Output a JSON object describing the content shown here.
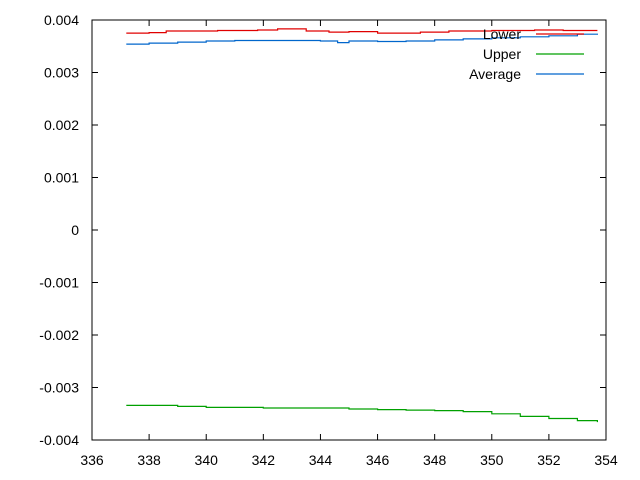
{
  "chart_data": {
    "type": "line",
    "title": "",
    "xlabel": "",
    "ylabel": "",
    "xlim": [
      336,
      354
    ],
    "ylim": [
      -0.004,
      0.004
    ],
    "x_ticks": [
      "336",
      "338",
      "340",
      "342",
      "344",
      "346",
      "348",
      "350",
      "352",
      "354"
    ],
    "y_ticks": [
      "-0.004",
      "-0.003",
      "-0.002",
      "-0.001",
      "0",
      "0.001",
      "0.002",
      "0.003",
      "0.004"
    ],
    "grid": false,
    "legend_position": "top-right",
    "series": [
      {
        "name": "Lower",
        "color": "#e00000",
        "x": [
          337.2,
          338.0,
          338.6,
          339.5,
          340.4,
          341.2,
          341.8,
          342.5,
          343.5,
          344.3,
          345.0,
          346.0,
          347.5,
          348.5,
          350.0,
          351.5,
          352.5,
          353.7
        ],
        "y": [
          0.00375,
          0.00376,
          0.00379,
          0.00379,
          0.0038,
          0.0038,
          0.00381,
          0.00383,
          0.00379,
          0.00377,
          0.00378,
          0.00375,
          0.00377,
          0.00379,
          0.0038,
          0.00381,
          0.0038,
          0.0038
        ]
      },
      {
        "name": "Upper",
        "color": "#00a000",
        "x": [
          337.2,
          338.0,
          339.0,
          340.0,
          341.0,
          342.0,
          343.0,
          344.0,
          345.0,
          346.0,
          347.0,
          348.0,
          349.0,
          350.0,
          351.0,
          352.0,
          353.0,
          353.7
        ],
        "y": [
          -0.00334,
          -0.00334,
          -0.00336,
          -0.00338,
          -0.00338,
          -0.00339,
          -0.00339,
          -0.00339,
          -0.00341,
          -0.00342,
          -0.00343,
          -0.00344,
          -0.00346,
          -0.0035,
          -0.00355,
          -0.00359,
          -0.00363,
          -0.00366
        ]
      },
      {
        "name": "Average",
        "color": "#0066cc",
        "x": [
          337.2,
          338.0,
          339.0,
          340.0,
          341.0,
          342.0,
          343.0,
          344.0,
          344.6,
          345.0,
          346.0,
          347.0,
          348.0,
          349.0,
          350.0,
          351.0,
          352.0,
          353.0,
          353.7
        ],
        "y": [
          0.00354,
          0.00356,
          0.00358,
          0.0036,
          0.00361,
          0.00361,
          0.00361,
          0.0036,
          0.00357,
          0.0036,
          0.00359,
          0.0036,
          0.00362,
          0.00364,
          0.00366,
          0.00368,
          0.0037,
          0.00373,
          0.00372
        ]
      }
    ]
  }
}
